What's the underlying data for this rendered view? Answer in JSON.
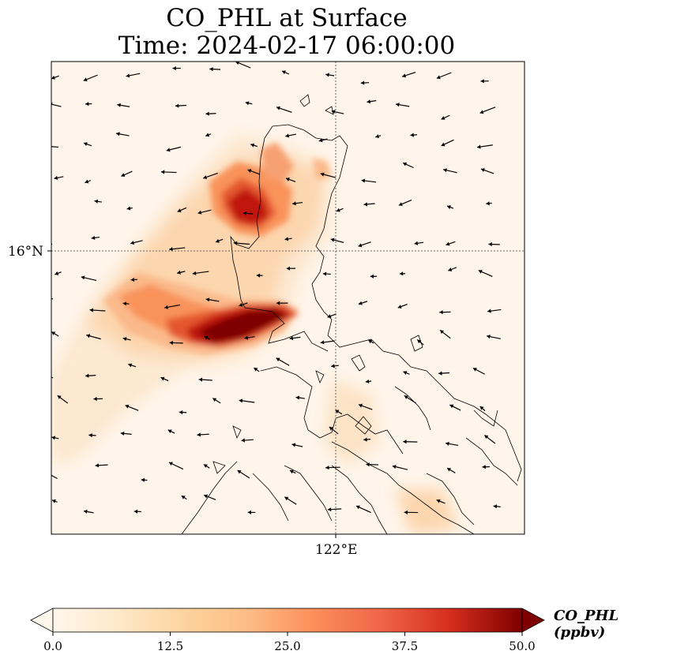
{
  "title": {
    "line1": "CO_PHL at Surface",
    "line2": "Time: 2024-02-17 06:00:00"
  },
  "map": {
    "gridlines": {
      "lat": "16°N",
      "lon": "122°E"
    },
    "plume_colors": [
      "#fff5ea",
      "#fde3c6",
      "#fcc391",
      "#f9935a",
      "#e4562e",
      "#c0150f",
      "#7e0000"
    ]
  },
  "colorbar": {
    "label": "CO_PHL (ppbv)",
    "ticks": [
      "0.0",
      "12.5",
      "25.0",
      "37.5",
      "50.0"
    ],
    "min": 0,
    "max": 50,
    "extend": "both",
    "colormap": "OrRd"
  }
}
